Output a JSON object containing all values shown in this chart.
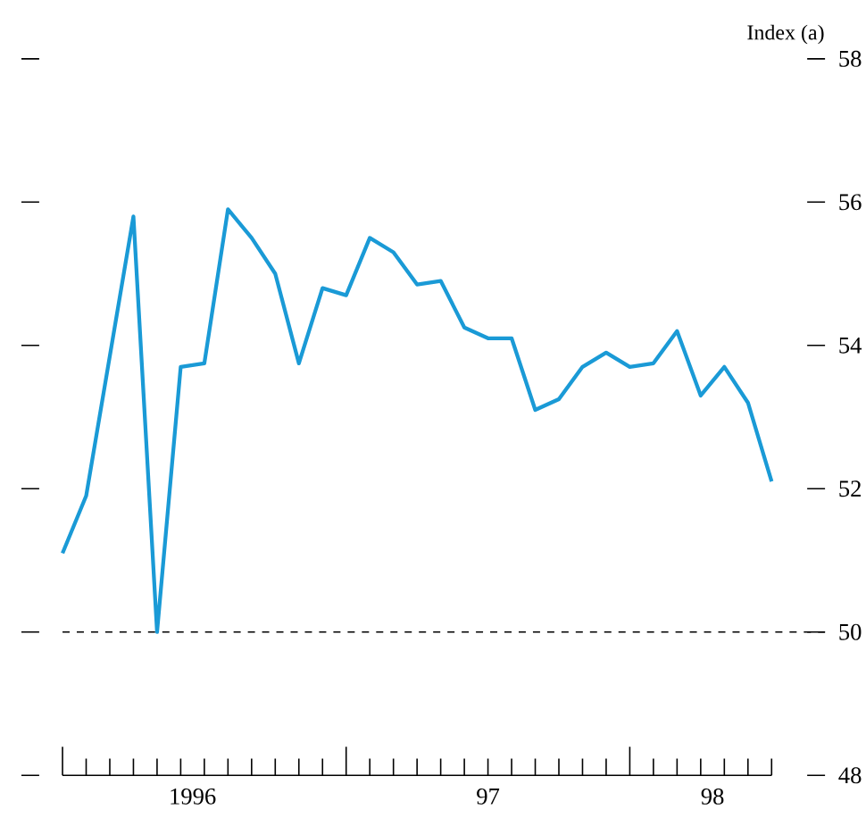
{
  "chart_data": {
    "type": "line",
    "ylabel": "Index (a)",
    "x": [
      "1996-01",
      "1996-02",
      "1996-03",
      "1996-04",
      "1996-05",
      "1996-06",
      "1996-07",
      "1996-08",
      "1996-09",
      "1996-10",
      "1996-11",
      "1996-12",
      "1997-01",
      "1997-02",
      "1997-03",
      "1997-04",
      "1997-05",
      "1997-06",
      "1997-07",
      "1997-08",
      "1997-09",
      "1997-10",
      "1997-11",
      "1997-12",
      "1998-01",
      "1998-02",
      "1998-03",
      "1998-04",
      "1998-05",
      "1998-06",
      "1998-07"
    ],
    "series": [
      {
        "color": "#1a9ad6",
        "values": [
          51.1,
          51.9,
          53.85,
          55.8,
          50.0,
          53.7,
          53.75,
          55.9,
          55.5,
          55.0,
          53.75,
          54.8,
          54.7,
          55.5,
          55.3,
          54.85,
          54.9,
          54.25,
          54.1,
          54.1,
          53.1,
          53.25,
          53.7,
          53.9,
          53.7,
          53.75,
          54.2,
          53.3,
          53.7,
          53.2,
          52.1
        ]
      }
    ],
    "xlim": [
      "1996-01",
      "1998-07"
    ],
    "xticks": [
      {
        "value": "1996-01",
        "label": null
      },
      {
        "value": "1996-02",
        "label": null
      },
      {
        "value": "1996-03",
        "label": null
      },
      {
        "value": "1996-04",
        "label": null
      },
      {
        "value": "1996-05",
        "label": null
      },
      {
        "value": "1996-06",
        "label": null
      },
      {
        "value": "1996-07",
        "label": null
      },
      {
        "value": "1996-08",
        "label": null
      },
      {
        "value": "1996-09",
        "label": null
      },
      {
        "value": "1996-10",
        "label": null
      },
      {
        "value": "1996-11",
        "label": null
      },
      {
        "value": "1996-12",
        "label": null
      },
      {
        "value": "1997-01",
        "label": null
      },
      {
        "value": "1997-02",
        "label": null
      },
      {
        "value": "1997-03",
        "label": null
      },
      {
        "value": "1997-04",
        "label": null
      },
      {
        "value": "1997-05",
        "label": null
      },
      {
        "value": "1997-06",
        "label": null
      },
      {
        "value": "1997-07",
        "label": null
      },
      {
        "value": "1997-08",
        "label": null
      },
      {
        "value": "1997-09",
        "label": null
      },
      {
        "value": "1997-10",
        "label": null
      },
      {
        "value": "1997-11",
        "label": null
      },
      {
        "value": "1997-12",
        "label": null
      },
      {
        "value": "1998-01",
        "label": null
      },
      {
        "value": "1998-02",
        "label": null
      },
      {
        "value": "1998-03",
        "label": null
      },
      {
        "value": "1998-04",
        "label": null
      },
      {
        "value": "1998-05",
        "label": null
      },
      {
        "value": "1998-06",
        "label": null
      },
      {
        "value": "1998-07",
        "label": null
      },
      {
        "value": "1996-06-16",
        "label": "1996"
      },
      {
        "value": "1997-07-01",
        "label": "97"
      },
      {
        "value": "1998-04-16",
        "label": "98"
      }
    ],
    "ylim": [
      48,
      58
    ],
    "yticks": [
      48,
      50,
      52,
      54,
      56,
      58
    ],
    "ref_lines": [
      {
        "axis": "y",
        "value": 50,
        "line_style": "dashed",
        "color": "#000000"
      }
    ],
    "grid": false,
    "marker": "none",
    "line_style": "solid"
  }
}
